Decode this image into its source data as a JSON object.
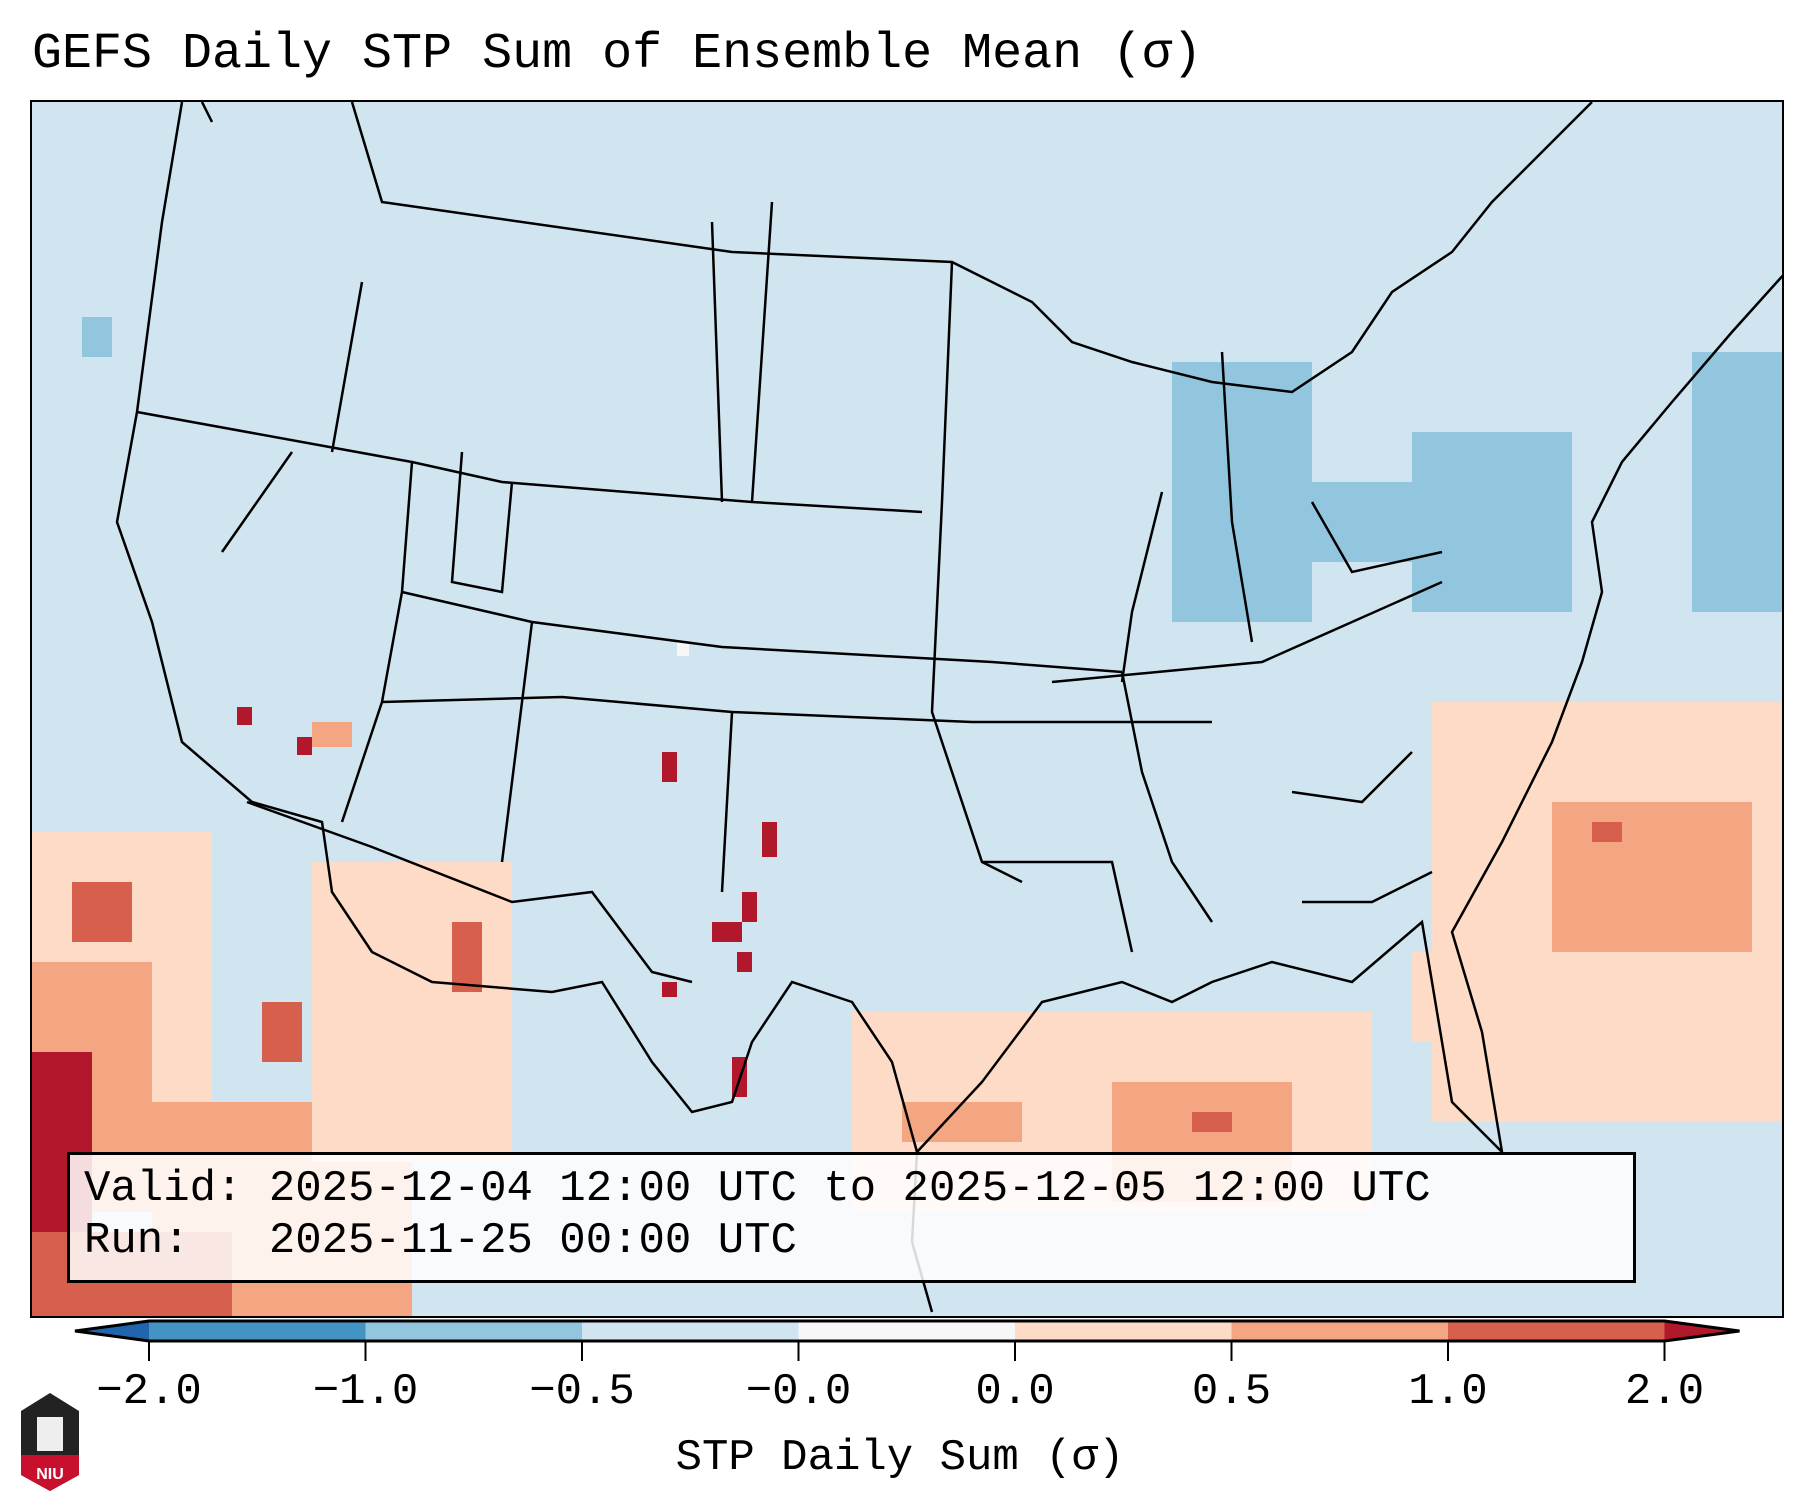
{
  "title": "GEFS Daily STP Sum of Ensemble Mean (σ)",
  "info": {
    "valid_label": "Valid:",
    "valid_value": "2025-12-04 12:00 UTC to 2025-12-05 12:00 UTC",
    "run_label": "Run:",
    "run_value": "2025-11-25 00:00 UTC"
  },
  "logo_text": "NIU",
  "chart_data": {
    "type": "heatmap",
    "title": "GEFS Daily STP Sum of Ensemble Mean (σ)",
    "region": "CONUS",
    "colorbar": {
      "label": "STP Daily Sum (σ)",
      "ticks": [
        "−2.0",
        "−1.0",
        "−0.5",
        "−0.0",
        "0.0",
        "0.5",
        "1.0",
        "2.0"
      ],
      "bounds": [
        -2.0,
        -1.0,
        -0.5,
        -0.0,
        0.0,
        0.5,
        1.0,
        2.0
      ],
      "extend": "both",
      "colors": [
        "#2166ac",
        "#4393c3",
        "#92c5de",
        "#d1e5f0",
        "#f7f7f7",
        "#fddbc7",
        "#f4a582",
        "#d6604d",
        "#b2182b"
      ]
    },
    "features": [
      {
        "area": "Gulf of Mexico / Gulf Coast",
        "range": "0.0 to 1.0"
      },
      {
        "area": "Western Atlantic off Southeast coast",
        "range": "0.0 to 1.0"
      },
      {
        "area": "Eastern Pacific off Baja California",
        "range": "0.0 to >2.0"
      },
      {
        "area": "West/central Texas scattered",
        "range": "1.0 to >2.0"
      },
      {
        "area": "Great Lakes / Northeast",
        "range": "-1.0 to -0.5"
      }
    ]
  }
}
